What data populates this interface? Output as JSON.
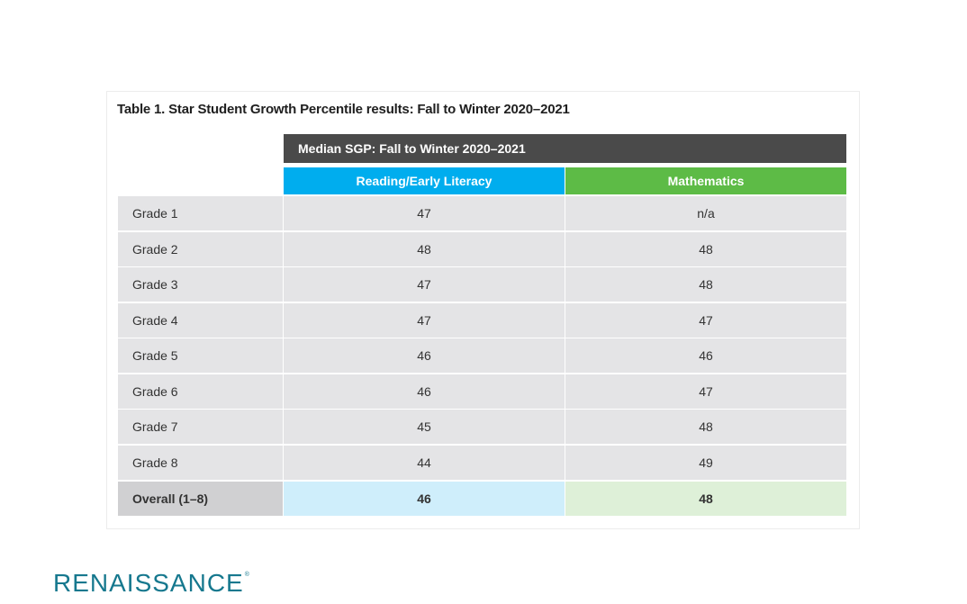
{
  "table": {
    "title": "Table 1. Star Student Growth Percentile results: Fall to Winter 2020–2021",
    "group_header": "Median SGP: Fall to Winter 2020–2021",
    "columns": [
      "Reading/Early Literacy",
      "Mathematics"
    ],
    "rows": [
      {
        "label": "Grade 1",
        "reading": "47",
        "math": "n/a"
      },
      {
        "label": "Grade 2",
        "reading": "48",
        "math": "48"
      },
      {
        "label": "Grade 3",
        "reading": "47",
        "math": "48"
      },
      {
        "label": "Grade 4",
        "reading": "47",
        "math": "47"
      },
      {
        "label": "Grade 5",
        "reading": "46",
        "math": "46"
      },
      {
        "label": "Grade 6",
        "reading": "46",
        "math": "47"
      },
      {
        "label": "Grade 7",
        "reading": "45",
        "math": "48"
      },
      {
        "label": "Grade 8",
        "reading": "44",
        "math": "49"
      }
    ],
    "overall": {
      "label": "Overall (1–8)",
      "reading": "46",
      "math": "48"
    }
  },
  "colors": {
    "group_header": "#4a4a4a",
    "reading": "#00adee",
    "math": "#5dbb46",
    "logo": "#16788e"
  },
  "logo": {
    "text": "RENAISSANCE",
    "mark": "®"
  }
}
